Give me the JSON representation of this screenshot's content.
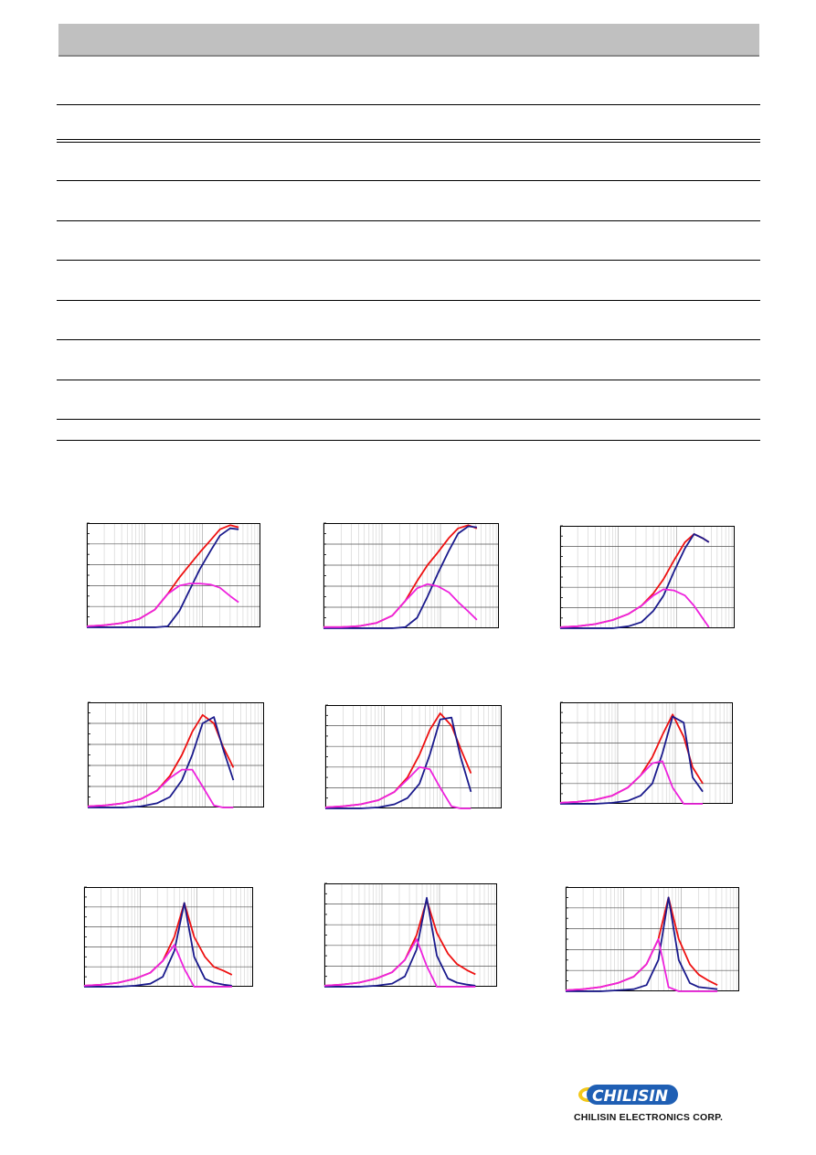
{
  "colors": {
    "header_bar": "#c0c0c0",
    "series_red": "#ee1111",
    "series_navy": "#1a1a8c",
    "series_magenta": "#ee22dd",
    "logo_blue": "#1f5fb4",
    "logo_yellow": "#f3c81a"
  },
  "table": {
    "rule_count": 8
  },
  "logo": {
    "text": "CHILISIN",
    "company": "CHILISIN ELECTRONICS CORP."
  },
  "chart_data": [
    {
      "type": "line",
      "xscale": "log",
      "x": [
        1,
        2,
        4,
        8,
        15,
        25,
        40,
        60,
        90,
        140,
        200,
        300,
        420
      ],
      "series": [
        {
          "color": "red",
          "values": [
            0.01,
            0.02,
            0.04,
            0.08,
            0.17,
            0.32,
            0.48,
            0.6,
            0.72,
            0.84,
            0.94,
            0.98,
            0.96
          ]
        },
        {
          "color": "navy",
          "values": [
            0.0,
            0.0,
            0.0,
            0.0,
            0.0,
            0.01,
            0.16,
            0.36,
            0.56,
            0.74,
            0.88,
            0.95,
            0.94
          ]
        },
        {
          "color": "magenta",
          "values": [
            0.01,
            0.02,
            0.04,
            0.08,
            0.17,
            0.32,
            0.4,
            0.42,
            0.42,
            0.41,
            0.38,
            0.3,
            0.24
          ]
        }
      ]
    },
    {
      "type": "line",
      "xscale": "log",
      "x": [
        1,
        2,
        4,
        8,
        15,
        25,
        40,
        60,
        90,
        140,
        200,
        300,
        420
      ],
      "series": [
        {
          "color": "red",
          "values": [
            0.01,
            0.01,
            0.02,
            0.05,
            0.12,
            0.26,
            0.45,
            0.6,
            0.72,
            0.86,
            0.95,
            0.98,
            0.95
          ]
        },
        {
          "color": "navy",
          "values": [
            0.0,
            0.0,
            0.0,
            0.0,
            0.0,
            0.01,
            0.1,
            0.3,
            0.52,
            0.74,
            0.9,
            0.97,
            0.96
          ]
        },
        {
          "color": "magenta",
          "values": [
            0.01,
            0.01,
            0.02,
            0.05,
            0.12,
            0.26,
            0.38,
            0.42,
            0.4,
            0.34,
            0.25,
            0.16,
            0.08
          ]
        }
      ]
    },
    {
      "type": "line",
      "xscale": "log",
      "x": [
        1,
        2,
        4,
        8,
        15,
        25,
        40,
        60,
        90,
        140,
        200,
        280,
        360
      ],
      "series": [
        {
          "color": "red",
          "values": [
            0.01,
            0.02,
            0.04,
            0.08,
            0.14,
            0.22,
            0.34,
            0.48,
            0.66,
            0.84,
            0.92,
            0.88,
            0.84
          ]
        },
        {
          "color": "navy",
          "values": [
            0.0,
            0.0,
            0.0,
            0.0,
            0.02,
            0.06,
            0.17,
            0.32,
            0.55,
            0.78,
            0.92,
            0.88,
            0.84
          ]
        },
        {
          "color": "magenta",
          "values": [
            0.01,
            0.02,
            0.04,
            0.08,
            0.14,
            0.22,
            0.32,
            0.38,
            0.37,
            0.32,
            0.22,
            0.1,
            0.01
          ]
        }
      ]
    },
    {
      "type": "line",
      "xscale": "log",
      "x": [
        1,
        2,
        4,
        8,
        15,
        25,
        40,
        60,
        90,
        140,
        200,
        300
      ],
      "series": [
        {
          "color": "red",
          "values": [
            0.01,
            0.02,
            0.04,
            0.08,
            0.16,
            0.3,
            0.5,
            0.72,
            0.88,
            0.8,
            0.58,
            0.38
          ]
        },
        {
          "color": "navy",
          "values": [
            0.0,
            0.0,
            0.0,
            0.01,
            0.04,
            0.1,
            0.26,
            0.5,
            0.8,
            0.86,
            0.56,
            0.26
          ]
        },
        {
          "color": "magenta",
          "values": [
            0.01,
            0.02,
            0.04,
            0.08,
            0.16,
            0.28,
            0.36,
            0.36,
            0.2,
            0.02,
            0.0,
            0.0
          ]
        }
      ]
    },
    {
      "type": "line",
      "xscale": "log",
      "x": [
        1,
        2,
        4,
        8,
        15,
        25,
        40,
        60,
        90,
        140,
        200,
        300
      ],
      "series": [
        {
          "color": "red",
          "values": [
            0.01,
            0.02,
            0.04,
            0.08,
            0.16,
            0.3,
            0.52,
            0.76,
            0.92,
            0.8,
            0.58,
            0.34
          ]
        },
        {
          "color": "navy",
          "values": [
            0.0,
            0.0,
            0.0,
            0.01,
            0.04,
            0.1,
            0.24,
            0.52,
            0.86,
            0.88,
            0.5,
            0.16
          ]
        },
        {
          "color": "magenta",
          "values": [
            0.01,
            0.02,
            0.04,
            0.08,
            0.16,
            0.28,
            0.4,
            0.38,
            0.2,
            0.02,
            0.0,
            0.0
          ]
        }
      ]
    },
    {
      "type": "line",
      "xscale": "log",
      "x": [
        1,
        2,
        4,
        8,
        15,
        25,
        40,
        60,
        90,
        140,
        200,
        300
      ],
      "series": [
        {
          "color": "red",
          "values": [
            0.01,
            0.02,
            0.04,
            0.08,
            0.16,
            0.28,
            0.46,
            0.68,
            0.88,
            0.66,
            0.36,
            0.2
          ]
        },
        {
          "color": "navy",
          "values": [
            0.0,
            0.0,
            0.0,
            0.01,
            0.03,
            0.08,
            0.2,
            0.5,
            0.86,
            0.8,
            0.26,
            0.12
          ]
        },
        {
          "color": "magenta",
          "values": [
            0.01,
            0.02,
            0.04,
            0.08,
            0.16,
            0.28,
            0.4,
            0.42,
            0.16,
            0.0,
            0.0,
            0.0
          ]
        }
      ]
    },
    {
      "type": "line",
      "xscale": "log",
      "x": [
        1,
        2,
        4,
        8,
        15,
        25,
        40,
        60,
        90,
        140,
        200,
        300,
        420
      ],
      "series": [
        {
          "color": "red",
          "values": [
            0.01,
            0.02,
            0.04,
            0.08,
            0.14,
            0.26,
            0.5,
            0.84,
            0.5,
            0.3,
            0.2,
            0.16,
            0.12
          ]
        },
        {
          "color": "navy",
          "values": [
            0.0,
            0.0,
            0.0,
            0.01,
            0.03,
            0.1,
            0.36,
            0.84,
            0.3,
            0.08,
            0.04,
            0.02,
            0.01
          ]
        },
        {
          "color": "magenta",
          "values": [
            0.01,
            0.02,
            0.04,
            0.08,
            0.14,
            0.26,
            0.42,
            0.18,
            0.0,
            0.0,
            0.0,
            0.0,
            0.0
          ]
        }
      ]
    },
    {
      "type": "line",
      "xscale": "log",
      "x": [
        1,
        2,
        4,
        8,
        15,
        25,
        40,
        60,
        90,
        140,
        200,
        300,
        420
      ],
      "series": [
        {
          "color": "red",
          "values": [
            0.01,
            0.02,
            0.04,
            0.08,
            0.14,
            0.26,
            0.5,
            0.84,
            0.52,
            0.32,
            0.22,
            0.16,
            0.12
          ]
        },
        {
          "color": "navy",
          "values": [
            0.0,
            0.0,
            0.0,
            0.01,
            0.03,
            0.1,
            0.36,
            0.86,
            0.3,
            0.08,
            0.04,
            0.02,
            0.01
          ]
        },
        {
          "color": "magenta",
          "values": [
            0.01,
            0.02,
            0.04,
            0.08,
            0.14,
            0.26,
            0.46,
            0.2,
            0.0,
            0.0,
            0.0,
            0.0,
            0.0
          ]
        }
      ]
    },
    {
      "type": "line",
      "xscale": "log",
      "x": [
        1,
        2,
        4,
        8,
        15,
        25,
        40,
        60,
        90,
        140,
        200,
        300,
        420
      ],
      "series": [
        {
          "color": "red",
          "values": [
            0.01,
            0.02,
            0.04,
            0.08,
            0.14,
            0.26,
            0.5,
            0.9,
            0.5,
            0.26,
            0.16,
            0.1,
            0.06
          ]
        },
        {
          "color": "navy",
          "values": [
            0.0,
            0.0,
            0.0,
            0.01,
            0.02,
            0.06,
            0.3,
            0.9,
            0.3,
            0.08,
            0.04,
            0.03,
            0.02
          ]
        },
        {
          "color": "magenta",
          "values": [
            0.01,
            0.02,
            0.04,
            0.08,
            0.14,
            0.26,
            0.5,
            0.04,
            0.0,
            0.0,
            0.0,
            0.0,
            0.0
          ]
        }
      ]
    }
  ]
}
